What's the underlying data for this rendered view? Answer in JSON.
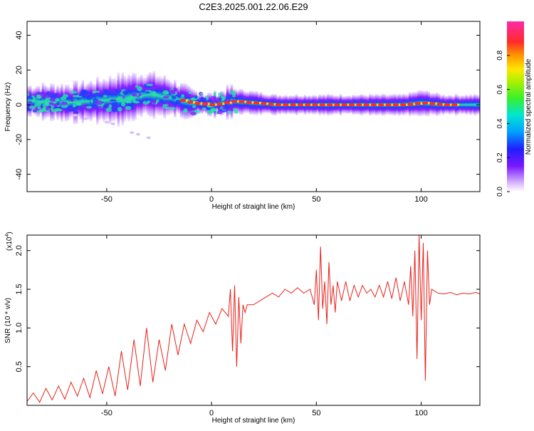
{
  "title": "C2E3.2025.001.22.06.E29",
  "chart_data": [
    {
      "type": "heatmap",
      "xlabel": "Height of straight line (km)",
      "ylabel": "Frequency (Hz)",
      "xlim": [
        -88,
        128
      ],
      "ylim": [
        -50,
        48
      ],
      "x_ticks": [
        -50,
        0,
        50,
        100
      ],
      "y_ticks": [
        40,
        20,
        0,
        -20,
        -40
      ],
      "colorbar": {
        "label": "Normalized spectral amplitude",
        "range": [
          0.0,
          1.0
        ],
        "ticks": [
          "0.0",
          "0.2",
          "0.4",
          "0.6",
          "0.8"
        ],
        "tick_values": [
          0.0,
          0.2,
          0.4,
          0.6,
          0.8
        ]
      },
      "band": [
        {
          "x": -85,
          "center": 2,
          "halfwidth": 4,
          "peak": 0.45
        },
        {
          "x": -70,
          "center": 1,
          "halfwidth": 5,
          "peak": 0.5
        },
        {
          "x": -60,
          "center": 2,
          "halfwidth": 5,
          "peak": 0.55
        },
        {
          "x": -45,
          "center": 3,
          "halfwidth": 7,
          "peak": 0.6
        },
        {
          "x": -30,
          "center": 6,
          "halfwidth": 6,
          "peak": 0.65
        },
        {
          "x": -20,
          "center": 4,
          "halfwidth": 5,
          "peak": 0.6
        },
        {
          "x": -10,
          "center": 1,
          "halfwidth": 3,
          "peak": 0.95
        },
        {
          "x": 0,
          "center": 0,
          "halfwidth": 2,
          "peak": 0.95
        },
        {
          "x": 10,
          "center": 2,
          "halfwidth": 4,
          "peak": 0.7
        },
        {
          "x": 30,
          "center": 0,
          "halfwidth": 3,
          "peak": 0.95
        },
        {
          "x": 60,
          "center": 0,
          "halfwidth": 3,
          "peak": 0.95
        },
        {
          "x": 90,
          "center": 0,
          "halfwidth": 3,
          "peak": 0.95
        },
        {
          "x": 100,
          "center": 1,
          "halfwidth": 4,
          "peak": 0.7
        },
        {
          "x": 110,
          "center": 0,
          "halfwidth": 3,
          "peak": 0.95
        },
        {
          "x": 127,
          "center": 0,
          "halfwidth": 3,
          "peak": 0.55
        }
      ]
    },
    {
      "type": "line",
      "xlabel": "Height of straight line (km)",
      "ylabel": "SNR (10 * v/v)",
      "multiplier": "(x10^4)",
      "xlim": [
        -88,
        128
      ],
      "ylim": [
        0,
        2.2
      ],
      "x_ticks": [
        -50,
        0,
        50,
        100
      ],
      "y_ticks": [
        "0.5",
        "1.0",
        "1.5",
        "2.0"
      ],
      "y_tick_values": [
        0.5,
        1.0,
        1.5,
        2.0
      ],
      "color": "#e8201a",
      "series": [
        {
          "x": [
            -88,
            -85,
            -82,
            -79,
            -76,
            -73,
            -70,
            -67,
            -64,
            -61,
            -58,
            -55,
            -52,
            -49,
            -46,
            -43,
            -40,
            -37,
            -34,
            -31,
            -28,
            -25,
            -22,
            -19,
            -16,
            -13,
            -10,
            -7,
            -4,
            -1,
            2,
            5,
            8,
            9,
            10,
            11,
            12,
            13,
            14,
            15,
            16,
            17,
            20,
            23,
            26,
            29,
            32,
            35,
            38,
            41,
            44,
            47,
            49,
            50,
            51,
            52,
            53,
            54,
            55,
            56,
            57,
            58,
            59,
            60,
            62,
            64,
            66,
            68,
            70,
            72,
            74,
            76,
            78,
            80,
            82,
            84,
            86,
            88,
            90,
            92,
            94,
            95,
            96,
            97,
            98,
            99,
            100,
            101,
            102,
            103,
            104,
            105,
            108,
            111,
            114,
            117,
            120,
            123,
            126,
            128
          ],
          "y": [
            0.05,
            0.16,
            0.04,
            0.22,
            0.07,
            0.25,
            0.08,
            0.3,
            0.12,
            0.35,
            0.1,
            0.45,
            0.15,
            0.5,
            0.12,
            0.7,
            0.2,
            0.85,
            0.25,
            1.0,
            0.3,
            0.85,
            0.45,
            1.05,
            0.65,
            1.05,
            0.8,
            1.1,
            0.95,
            1.2,
            1.05,
            1.25,
            1.15,
            1.5,
            0.7,
            1.55,
            0.5,
            1.4,
            0.8,
            1.3,
            1.2,
            1.3,
            1.3,
            1.35,
            1.4,
            1.45,
            1.4,
            1.5,
            1.45,
            1.52,
            1.45,
            1.5,
            1.3,
            1.75,
            1.1,
            2.05,
            1.25,
            1.6,
            1.05,
            1.85,
            1.3,
            1.55,
            1.2,
            1.6,
            1.35,
            1.6,
            1.35,
            1.55,
            1.4,
            1.55,
            1.45,
            1.5,
            1.4,
            1.55,
            1.4,
            1.6,
            1.38,
            1.65,
            1.35,
            1.6,
            1.3,
            1.8,
            1.15,
            2.0,
            0.6,
            2.2,
            1.1,
            2.1,
            0.32,
            2.0,
            1.3,
            1.5,
            1.45,
            1.44,
            1.46,
            1.43,
            1.45,
            1.44,
            1.46,
            1.44
          ]
        }
      ]
    }
  ]
}
